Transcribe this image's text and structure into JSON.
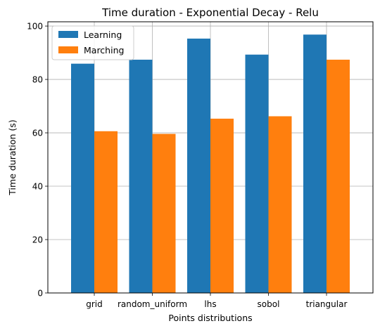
{
  "chart_data": {
    "type": "bar",
    "title": "Time duration - Exponential Decay - Relu",
    "xlabel": "Points distributions",
    "ylabel": "Time duration (s)",
    "categories": [
      "grid",
      "random_uniform",
      "lhs",
      "sobol",
      "triangular"
    ],
    "series": [
      {
        "name": "Learning",
        "color": "#1f77b4",
        "values": [
          85.9,
          87.4,
          95.3,
          89.3,
          96.8
        ]
      },
      {
        "name": "Marching",
        "color": "#ff7f0e",
        "values": [
          60.6,
          59.6,
          65.3,
          66.2,
          87.4
        ]
      }
    ],
    "ylim": [
      0,
      101.6
    ],
    "yticks": [
      0,
      20,
      40,
      60,
      80,
      100
    ],
    "grid": true,
    "legend": "top-left"
  }
}
